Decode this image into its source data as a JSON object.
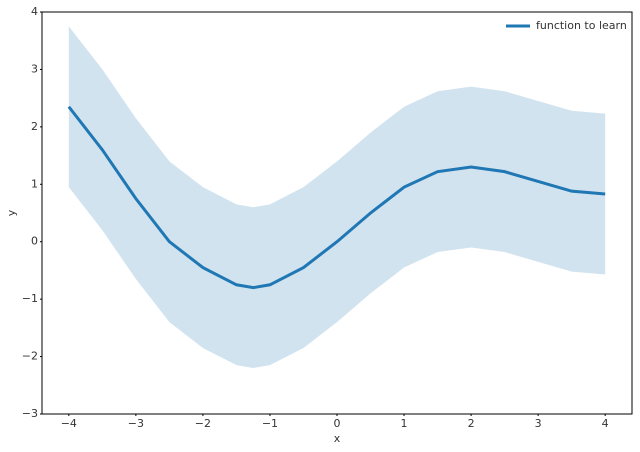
{
  "chart_data": {
    "type": "line",
    "x_label": "x",
    "y_label": "y",
    "x": [
      -4,
      -3.5,
      -3,
      -2.5,
      -2,
      -1.5,
      -1.25,
      -1,
      -0.5,
      0,
      0.5,
      1,
      1.5,
      2,
      2.5,
      3,
      3.5,
      4
    ],
    "series": [
      {
        "name": "function to learn",
        "color": "#1f77b4",
        "values": [
          2.35,
          1.6,
          0.75,
          0.0,
          -0.45,
          -0.75,
          -0.8,
          -0.75,
          -0.45,
          0.0,
          0.5,
          0.95,
          1.22,
          1.3,
          1.22,
          1.05,
          0.88,
          0.83
        ]
      }
    ],
    "band": {
      "color": "#d2e3f0",
      "upper": [
        3.75,
        3.0,
        2.15,
        1.4,
        0.95,
        0.65,
        0.6,
        0.65,
        0.95,
        1.4,
        1.9,
        2.35,
        2.62,
        2.7,
        2.62,
        2.45,
        2.28,
        2.23
      ],
      "lower": [
        0.95,
        0.2,
        -0.65,
        -1.4,
        -1.85,
        -2.15,
        -2.2,
        -2.15,
        -1.85,
        -1.4,
        -0.9,
        -0.45,
        -0.18,
        -0.1,
        -0.18,
        -0.35,
        -0.52,
        -0.57
      ]
    },
    "xlim": [
      -4.4,
      4.4
    ],
    "ylim": [
      -3,
      4
    ],
    "xticks": [
      {
        "value": -4,
        "label": "−4"
      },
      {
        "value": -3,
        "label": "−3"
      },
      {
        "value": -2,
        "label": "−2"
      },
      {
        "value": -1,
        "label": "−1"
      },
      0,
      1,
      2,
      3,
      4
    ],
    "yticks": [
      {
        "value": -3,
        "label": "−3"
      },
      {
        "value": -2,
        "label": "−2"
      },
      {
        "value": -1,
        "label": "−1"
      },
      0,
      1,
      2,
      3,
      4
    ],
    "grid": false,
    "legend": "upper right"
  }
}
